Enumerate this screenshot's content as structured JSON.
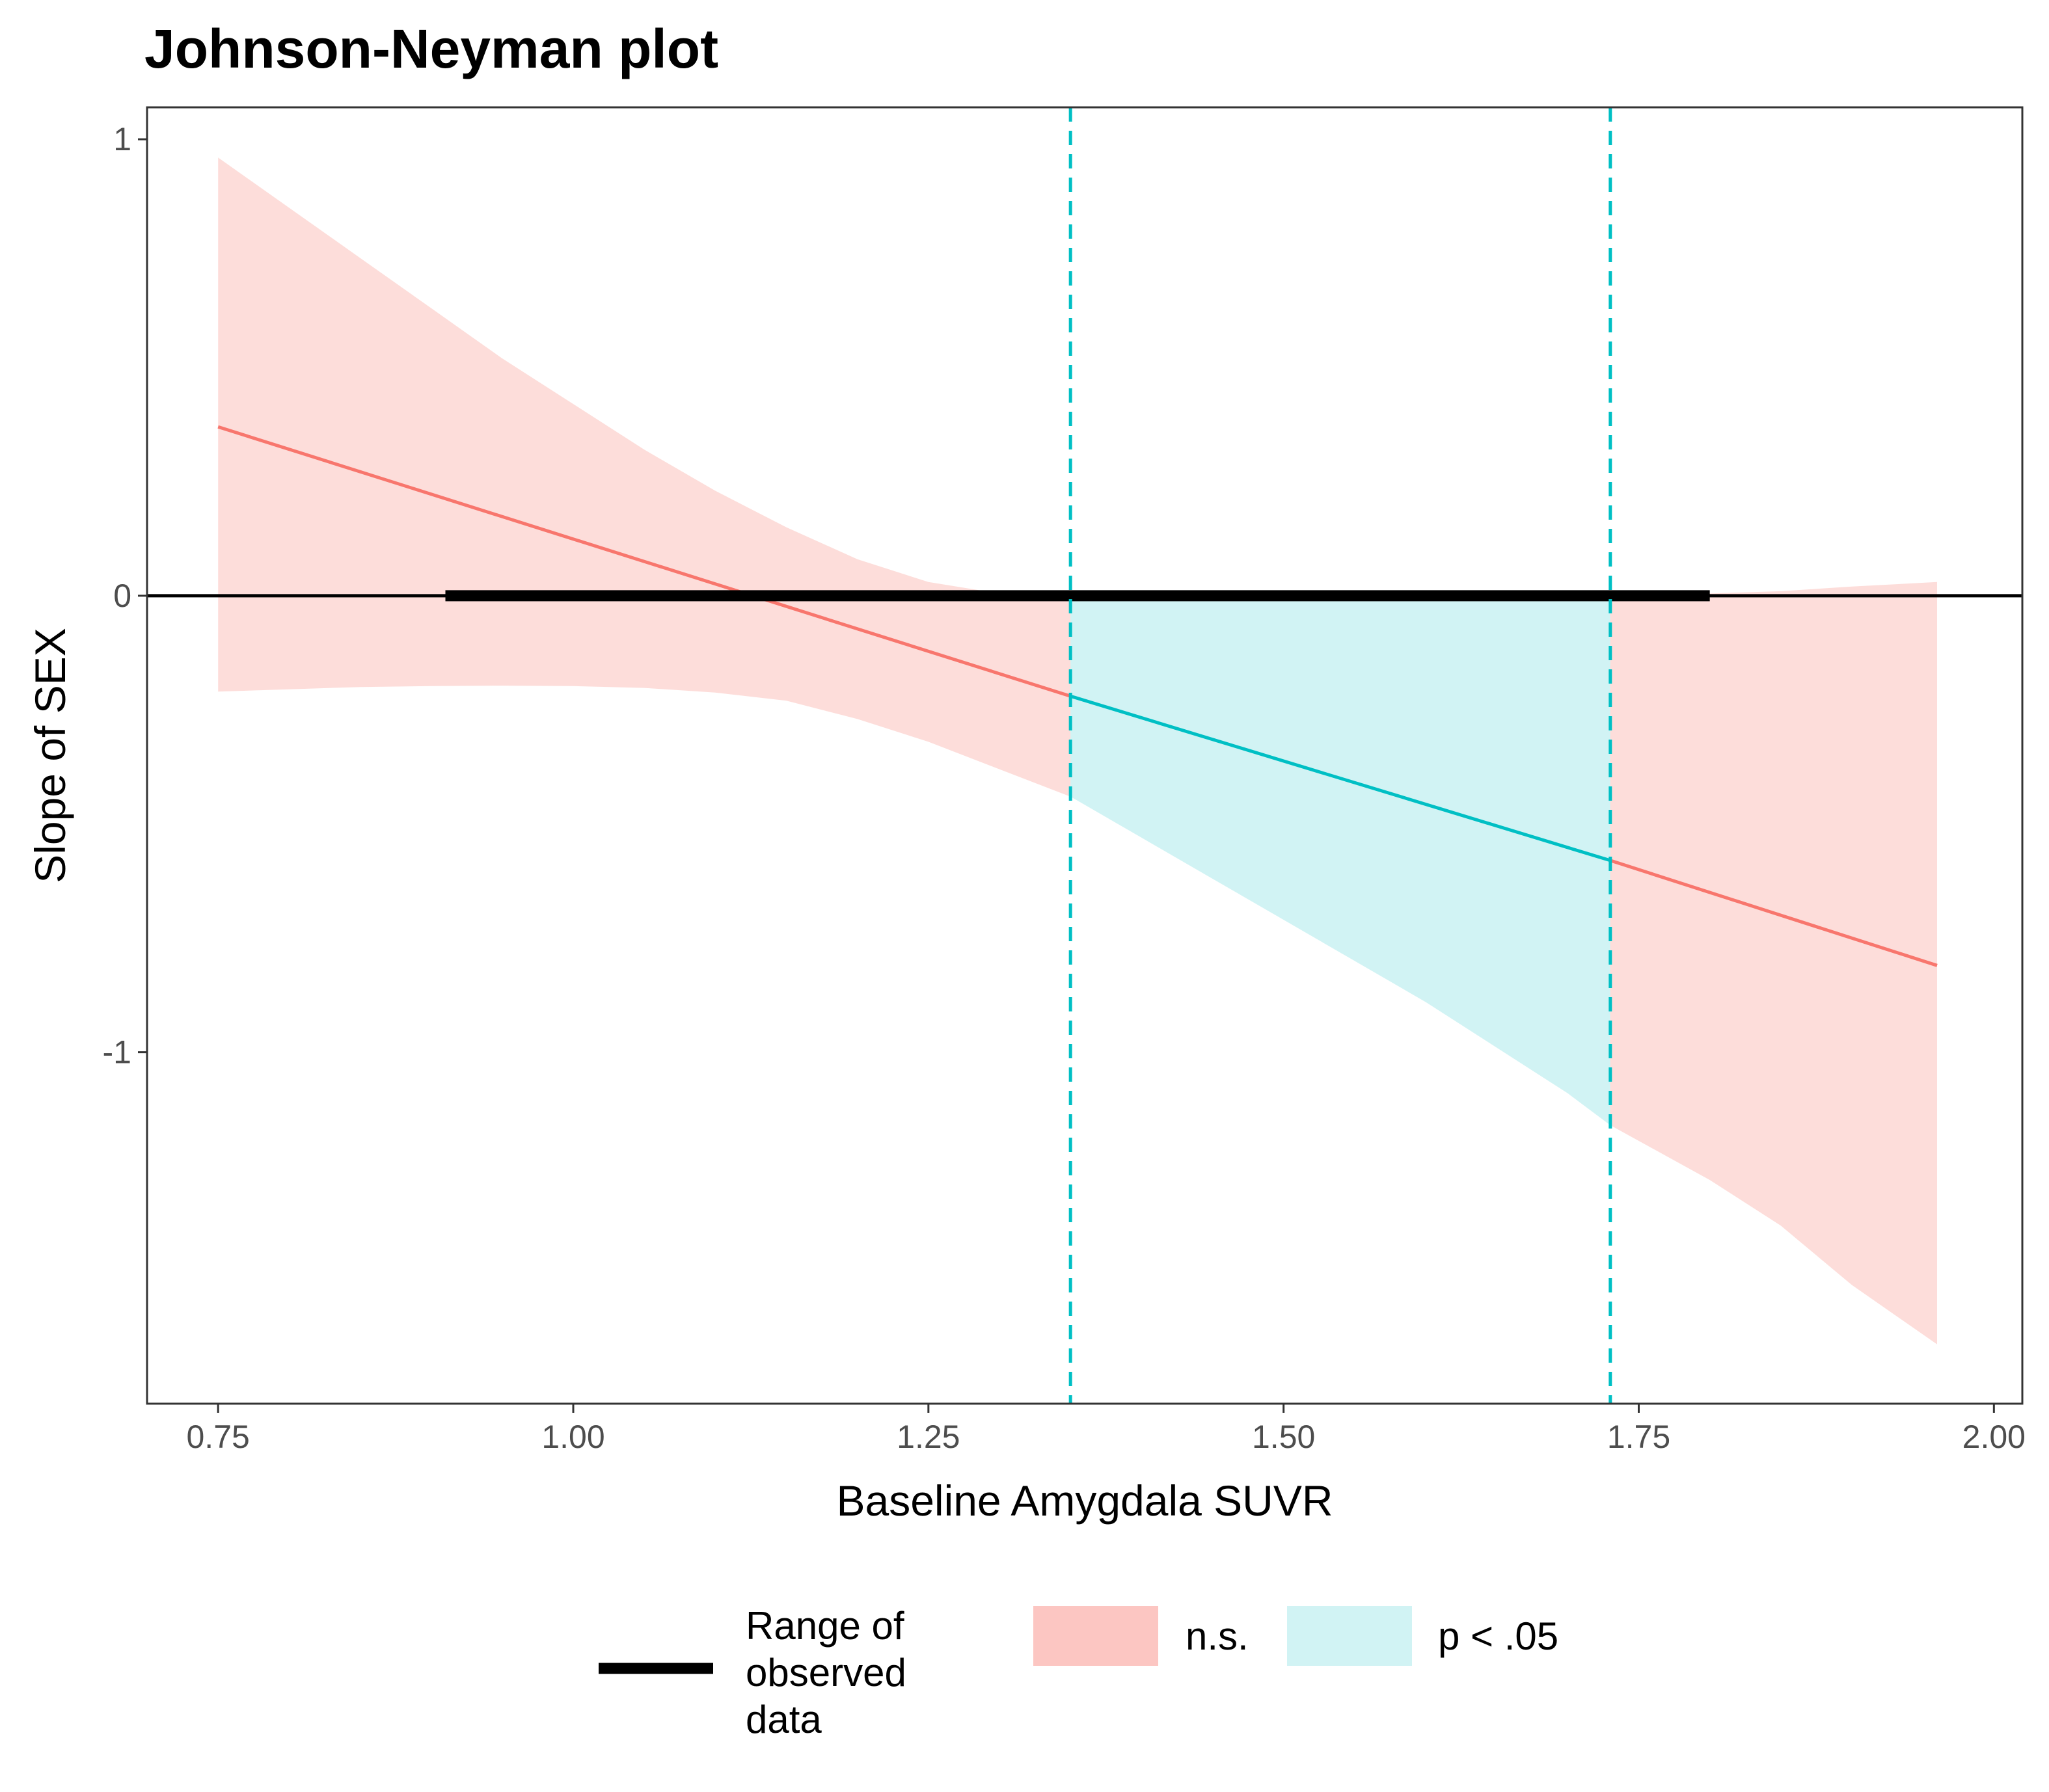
{
  "chart_data": {
    "type": "line",
    "title": "Johnson-Neyman plot",
    "xlabel": "Baseline Amygdala SUVR",
    "ylabel": "Slope of SEX",
    "xlim": [
      0.7,
      2.02
    ],
    "ylim": [
      -1.77,
      1.07
    ],
    "x_ticks": [
      0.75,
      1.0,
      1.25,
      1.5,
      1.75,
      2.0
    ],
    "x_tick_labels": [
      "0.75",
      "1.00",
      "1.25",
      "1.50",
      "1.75",
      "2.00"
    ],
    "y_ticks": [
      1,
      0,
      -1
    ],
    "y_tick_labels": [
      "1",
      "0",
      "-1"
    ],
    "grid": false,
    "legend_position": "bottom",
    "johnson_neyman_bounds": [
      1.35,
      1.73
    ],
    "observed_range": [
      0.91,
      1.8
    ],
    "slope_line": {
      "x": [
        0.75,
        1.35,
        1.73,
        1.96
      ],
      "y": [
        0.37,
        -0.22,
        -0.58,
        -0.81
      ]
    },
    "ci_band": {
      "x": [
        0.75,
        0.8,
        0.85,
        0.9,
        0.95,
        1.0,
        1.05,
        1.1,
        1.15,
        1.2,
        1.25,
        1.3,
        1.35,
        1.4,
        1.45,
        1.5,
        1.55,
        1.6,
        1.65,
        1.7,
        1.73,
        1.8,
        1.85,
        1.9,
        1.96
      ],
      "upper": [
        0.96,
        0.85,
        0.74,
        0.63,
        0.52,
        0.42,
        0.32,
        0.23,
        0.15,
        0.08,
        0.03,
        0.005,
        0.0,
        0.0,
        0.0,
        0.0,
        0.0,
        0.0,
        0.0,
        0.0,
        0.0,
        0.005,
        0.01,
        0.02,
        0.03
      ],
      "lower": [
        -0.21,
        -0.205,
        -0.2,
        -0.198,
        -0.197,
        -0.198,
        -0.202,
        -0.212,
        -0.23,
        -0.27,
        -0.32,
        -0.38,
        -0.44,
        -0.53,
        -0.62,
        -0.71,
        -0.8,
        -0.89,
        -0.99,
        -1.09,
        -1.16,
        -1.28,
        -1.38,
        -1.51,
        -1.64
      ]
    },
    "series": [
      {
        "name": "n.s.",
        "color": "#F8766D",
        "fill": "#F8766D",
        "fill_opacity": 0.25
      },
      {
        "name": "p < .05",
        "color": "#00BFC4",
        "fill": "#00BFC4",
        "fill_opacity": 0.18
      }
    ],
    "legend": {
      "range_label_lines": [
        "Range of",
        "observed",
        "data"
      ],
      "ns_label": "n.s.",
      "sig_label": "p < .05"
    }
  }
}
